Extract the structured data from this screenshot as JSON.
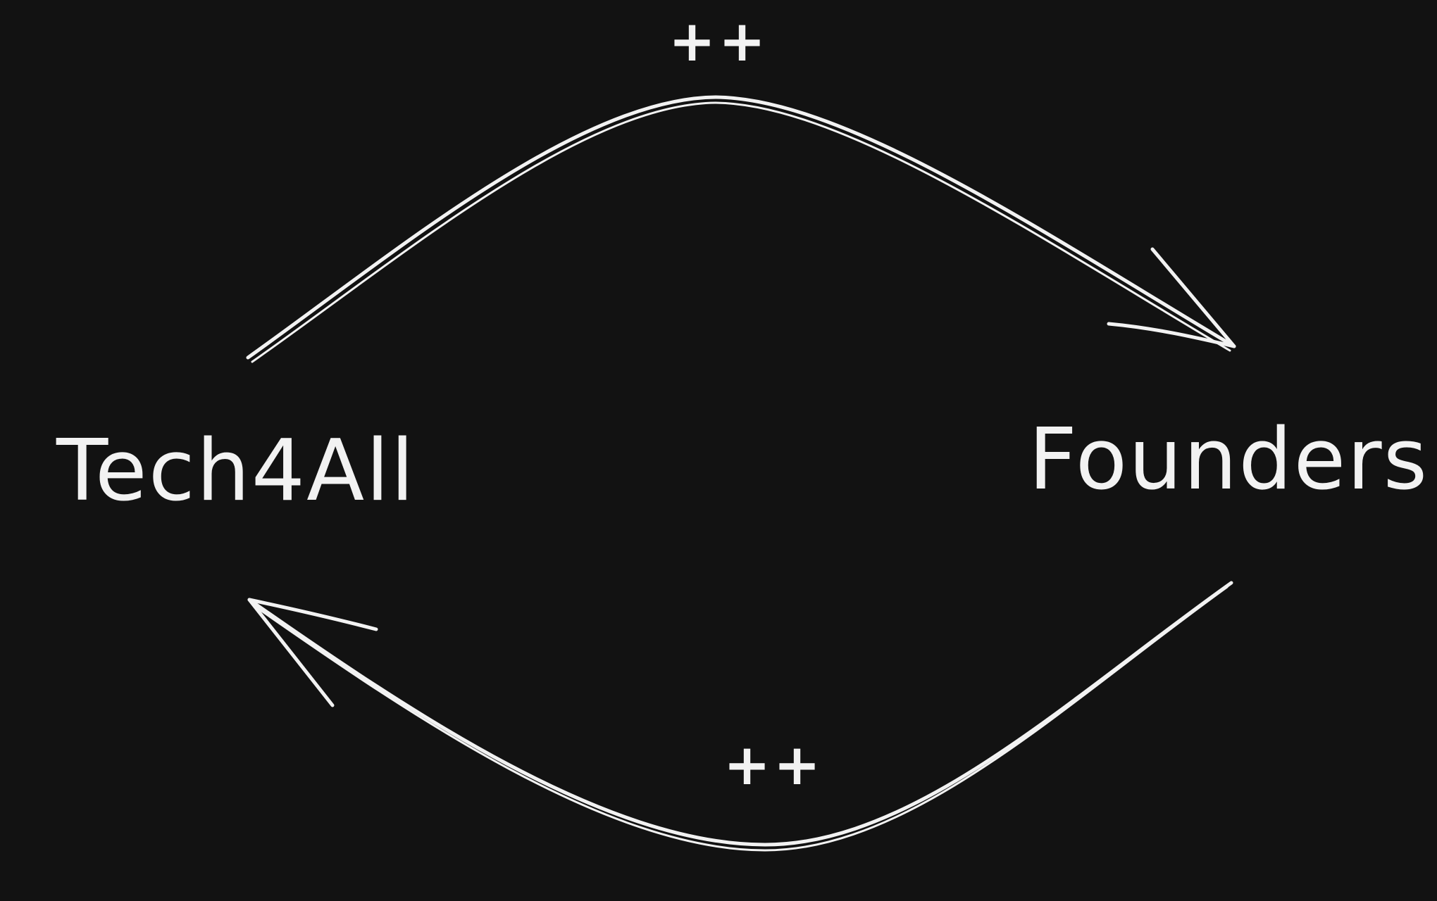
{
  "diagram": {
    "nodes": [
      {
        "id": "tech4all",
        "label": "Tech4All"
      },
      {
        "id": "founders",
        "label": "Founders"
      }
    ],
    "edges": [
      {
        "from": "tech4all",
        "to": "founders",
        "label": "++"
      },
      {
        "from": "founders",
        "to": "tech4all",
        "label": "++"
      }
    ]
  },
  "colors": {
    "background": "#121212",
    "ink": "#f2f2f2"
  }
}
